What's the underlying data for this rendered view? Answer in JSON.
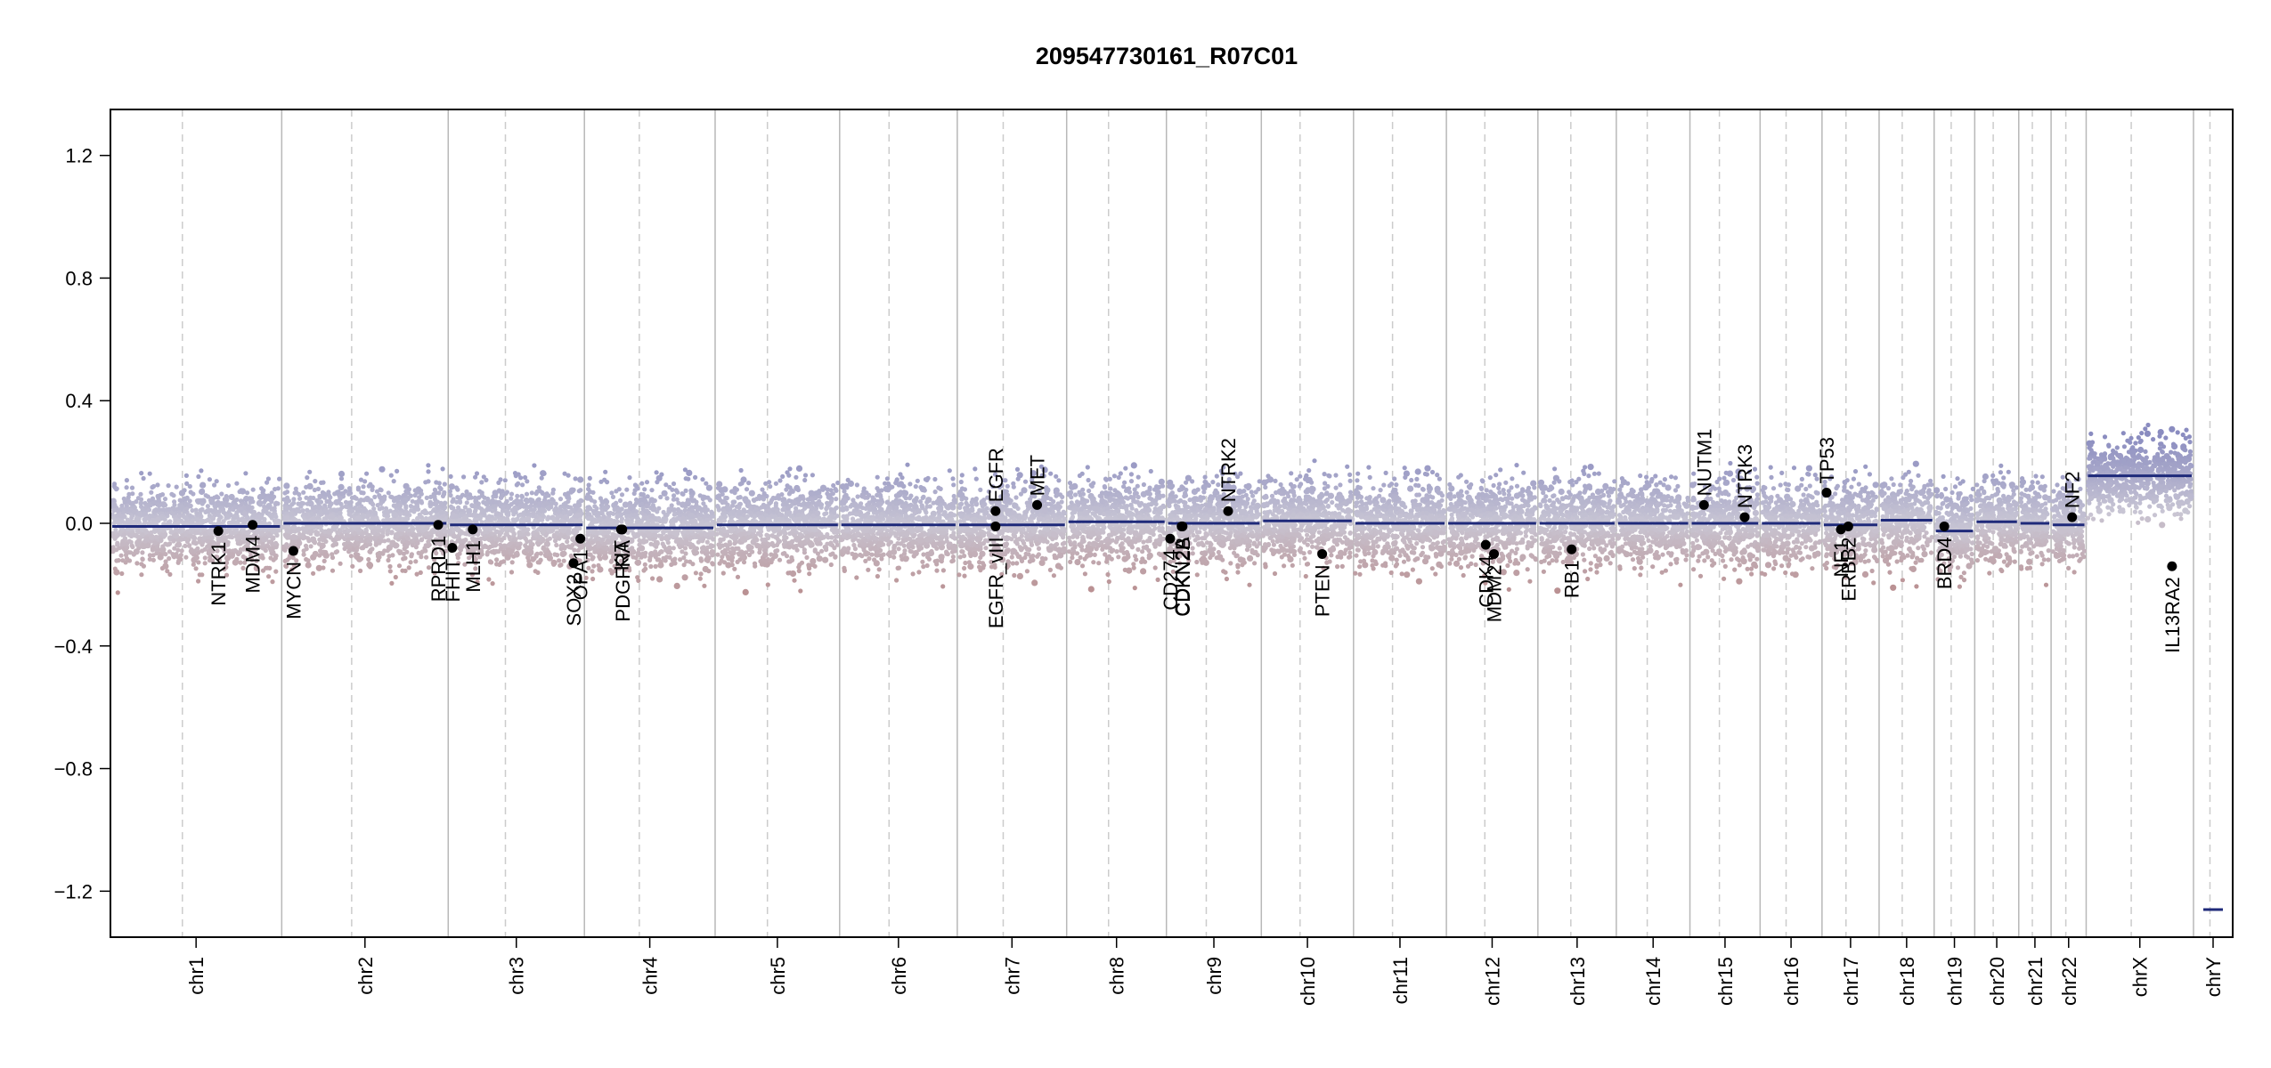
{
  "chart_data": {
    "type": "scatter",
    "title": "209547730161_R07C01",
    "xlabel": "",
    "ylabel": "",
    "ylim": [
      -1.35,
      1.35
    ],
    "yticks": [
      1.2,
      0.8,
      0.4,
      0.0,
      -0.4,
      -0.8,
      -1.2
    ],
    "ytick_labels": [
      "1.2",
      "0.8",
      "0.4",
      "0.0",
      "−0.4",
      "−0.8",
      "−1.2"
    ],
    "grid": false,
    "colors": {
      "segment": "#1f2a7a",
      "gain": "#8a8cc0",
      "loss": "#b88a8a",
      "neutral": "#c9c6d4",
      "gene_point": "#000000",
      "chr_boundary": "#b8b8b8",
      "centromere": "#cccccc"
    },
    "chromosomes": [
      {
        "name": "chr1",
        "size": 249
      },
      {
        "name": "chr2",
        "size": 242
      },
      {
        "name": "chr3",
        "size": 198
      },
      {
        "name": "chr4",
        "size": 190
      },
      {
        "name": "chr5",
        "size": 181
      },
      {
        "name": "chr6",
        "size": 171
      },
      {
        "name": "chr7",
        "size": 159
      },
      {
        "name": "chr8",
        "size": 145
      },
      {
        "name": "chr9",
        "size": 138
      },
      {
        "name": "chr10",
        "size": 134
      },
      {
        "name": "chr11",
        "size": 135
      },
      {
        "name": "chr12",
        "size": 133
      },
      {
        "name": "chr13",
        "size": 114
      },
      {
        "name": "chr14",
        "size": 107
      },
      {
        "name": "chr15",
        "size": 102
      },
      {
        "name": "chr16",
        "size": 90
      },
      {
        "name": "chr17",
        "size": 83
      },
      {
        "name": "chr18",
        "size": 80
      },
      {
        "name": "chr19",
        "size": 59
      },
      {
        "name": "chr20",
        "size": 64
      },
      {
        "name": "chr21",
        "size": 47
      },
      {
        "name": "chr22",
        "size": 51
      },
      {
        "name": "chrX",
        "size": 156
      },
      {
        "name": "chrY",
        "size": 57
      }
    ],
    "segments": [
      {
        "chr": "chr1",
        "value": -0.01
      },
      {
        "chr": "chr2",
        "value": 0.0
      },
      {
        "chr": "chr3",
        "value": -0.005
      },
      {
        "chr": "chr4",
        "value": -0.015
      },
      {
        "chr": "chr5",
        "value": -0.005
      },
      {
        "chr": "chr6",
        "value": -0.005
      },
      {
        "chr": "chr7",
        "value": -0.005
      },
      {
        "chr": "chr8",
        "value": 0.005
      },
      {
        "chr": "chr9",
        "value": 0.0
      },
      {
        "chr": "chr10",
        "value": 0.008
      },
      {
        "chr": "chr11",
        "value": 0.0
      },
      {
        "chr": "chr12",
        "value": 0.0
      },
      {
        "chr": "chr13",
        "value": 0.0
      },
      {
        "chr": "chr14",
        "value": 0.0
      },
      {
        "chr": "chr15",
        "value": 0.0
      },
      {
        "chr": "chr16",
        "value": 0.0
      },
      {
        "chr": "chr17",
        "value": -0.005
      },
      {
        "chr": "chr18",
        "value": 0.01
      },
      {
        "chr": "chr19",
        "value": -0.025
      },
      {
        "chr": "chr20",
        "value": 0.005
      },
      {
        "chr": "chr21",
        "value": 0.0
      },
      {
        "chr": "chr22",
        "value": -0.005
      },
      {
        "chr": "chrX",
        "value": 0.155
      },
      {
        "chr": "chrY",
        "value": -1.26
      }
    ],
    "genes": [
      {
        "name": "NTRK1",
        "chr": "chr1",
        "pos": 0.63,
        "value": -0.025,
        "label_side": "below"
      },
      {
        "name": "MDM4",
        "chr": "chr1",
        "pos": 0.83,
        "value": -0.005,
        "label_side": "below"
      },
      {
        "name": "MYCN",
        "chr": "chr2",
        "pos": 0.07,
        "value": -0.09,
        "label_side": "below"
      },
      {
        "name": "RPRD1",
        "chr": "chr2",
        "pos": 0.94,
        "value": -0.005,
        "label_side": "below"
      },
      {
        "name": "FHIT",
        "chr": "chr3",
        "pos": 0.03,
        "value": -0.08,
        "label_side": "below"
      },
      {
        "name": "MLH1",
        "chr": "chr3",
        "pos": 0.18,
        "value": -0.02,
        "label_side": "below"
      },
      {
        "name": "SOX2",
        "chr": "chr3",
        "pos": 0.92,
        "value": -0.13,
        "label_side": "below"
      },
      {
        "name": "OPA1",
        "chr": "chr3",
        "pos": 0.97,
        "value": -0.05,
        "label_side": "below"
      },
      {
        "name": "KIT",
        "chr": "chr4",
        "pos": 0.28,
        "value": -0.02,
        "label_side": "below"
      },
      {
        "name": "PDGFRA",
        "chr": "chr4",
        "pos": 0.29,
        "value": -0.02,
        "label_side": "below"
      },
      {
        "name": "EGFR_vIII",
        "chr": "chr7",
        "pos": 0.35,
        "value": -0.01,
        "label_side": "below"
      },
      {
        "name": "EGFR",
        "chr": "chr7",
        "pos": 0.35,
        "value": 0.04,
        "label_side": "above"
      },
      {
        "name": "MET",
        "chr": "chr7",
        "pos": 0.73,
        "value": 0.06,
        "label_side": "above"
      },
      {
        "name": "CD274",
        "chr": "chr9",
        "pos": 0.04,
        "value": -0.05,
        "label_side": "below"
      },
      {
        "name": "CDKN2A",
        "chr": "chr9",
        "pos": 0.16,
        "value": -0.01,
        "label_side": "below"
      },
      {
        "name": "CDKN2B",
        "chr": "chr9",
        "pos": 0.17,
        "value": -0.01,
        "label_side": "below"
      },
      {
        "name": "NTRK2",
        "chr": "chr9",
        "pos": 0.65,
        "value": 0.04,
        "label_side": "above"
      },
      {
        "name": "PTEN",
        "chr": "chr10",
        "pos": 0.66,
        "value": -0.1,
        "label_side": "below"
      },
      {
        "name": "CDK4",
        "chr": "chr12",
        "pos": 0.43,
        "value": -0.07,
        "label_side": "below"
      },
      {
        "name": "MDM2",
        "chr": "chr12",
        "pos": 0.52,
        "value": -0.1,
        "label_side": "below"
      },
      {
        "name": "RB1",
        "chr": "chr13",
        "pos": 0.43,
        "value": -0.085,
        "label_side": "below"
      },
      {
        "name": "NUTM1",
        "chr": "chr15",
        "pos": 0.2,
        "value": 0.06,
        "label_side": "above"
      },
      {
        "name": "NTRK3",
        "chr": "chr15",
        "pos": 0.78,
        "value": 0.02,
        "label_side": "above"
      },
      {
        "name": "TP53",
        "chr": "chr17",
        "pos": 0.08,
        "value": 0.1,
        "label_side": "above"
      },
      {
        "name": "NF1",
        "chr": "chr17",
        "pos": 0.33,
        "value": -0.02,
        "label_side": "below"
      },
      {
        "name": "ERBB2",
        "chr": "chr17",
        "pos": 0.46,
        "value": -0.01,
        "label_side": "below"
      },
      {
        "name": "BRD4",
        "chr": "chr19",
        "pos": 0.25,
        "value": -0.01,
        "label_side": "below"
      },
      {
        "name": "NF2",
        "chr": "chr22",
        "pos": 0.6,
        "value": 0.02,
        "label_side": "above"
      },
      {
        "name": "IL13RA2",
        "chr": "chrX",
        "pos": 0.8,
        "value": -0.14,
        "label_side": "below"
      }
    ]
  }
}
